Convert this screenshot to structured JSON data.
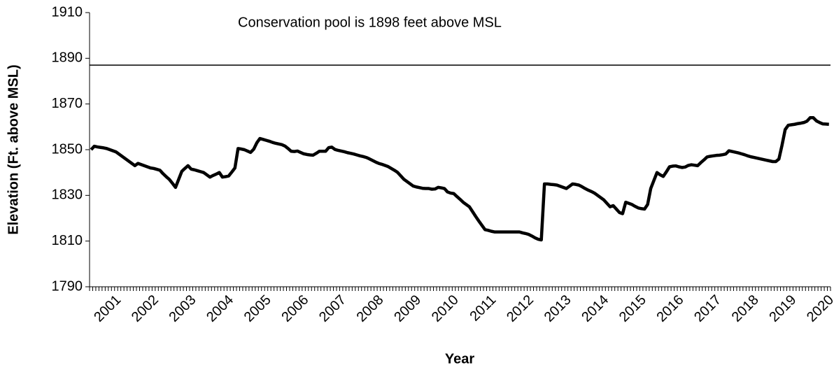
{
  "chart_data": {
    "type": "line",
    "annotation": "Conservation pool is 1898 feet above MSL",
    "xlabel": "Year",
    "ylabel": "Elevation (Ft. above MSL)",
    "reference_line": 1887,
    "color": "#000000",
    "categories": [
      null,
      null,
      null,
      null,
      null,
      null,
      null,
      null,
      "2001",
      null,
      null,
      null,
      null,
      null,
      null,
      null,
      null,
      null,
      null,
      null,
      "2002",
      null,
      null,
      null,
      null,
      null,
      null,
      null,
      null,
      null,
      null,
      null,
      "2003",
      null,
      null,
      null,
      null,
      null,
      null,
      null,
      null,
      null,
      null,
      null,
      "2004",
      null,
      null,
      null,
      null,
      null,
      null,
      null,
      null,
      null,
      null,
      null,
      "2005",
      null,
      null,
      null,
      null,
      null,
      null,
      null,
      null,
      null,
      null,
      null,
      "2006",
      null,
      null,
      null,
      null,
      null,
      null,
      null,
      null,
      null,
      null,
      null,
      "2007",
      null,
      null,
      null,
      null,
      null,
      null,
      null,
      null,
      null,
      null,
      null,
      "2008",
      null,
      null,
      null,
      null,
      null,
      null,
      null,
      null,
      null,
      null,
      null,
      "2009",
      null,
      null,
      null,
      null,
      null,
      null,
      null,
      null,
      null,
      null,
      null,
      "2010",
      null,
      null,
      null,
      null,
      null,
      null,
      null,
      null,
      null,
      null,
      null,
      "2011",
      null,
      null,
      null,
      null,
      null,
      null,
      null,
      null,
      null,
      null,
      null,
      "2012",
      null,
      null,
      null,
      null,
      null,
      null,
      null,
      null,
      null,
      null,
      null,
      "2013",
      null,
      null,
      null,
      null,
      null,
      null,
      null,
      null,
      null,
      null,
      null,
      "2014",
      null,
      null,
      null,
      null,
      null,
      null,
      null,
      null,
      null,
      null,
      null,
      "2015",
      null,
      null,
      null,
      null,
      null,
      null,
      null,
      null,
      null,
      null,
      null,
      "2016",
      null,
      null,
      null,
      null,
      null,
      null,
      null,
      null,
      null,
      null,
      null,
      "2017",
      null,
      null,
      null,
      null,
      null,
      null,
      null,
      null,
      null,
      null,
      null,
      "2018",
      null,
      null,
      null,
      null,
      null,
      null,
      null,
      null,
      null,
      null,
      null,
      "2019",
      null,
      null,
      null,
      null,
      null,
      null,
      null,
      null,
      null,
      null,
      null,
      "2020"
    ],
    "values": [
      1850,
      1851.5,
      1851.2,
      1851,
      1850.8,
      1850.5,
      1850,
      1849.5,
      1849,
      1848,
      1847,
      1846,
      1845,
      1844,
      1843,
      1844,
      1843.5,
      1843,
      1842.5,
      1842,
      1841.8,
      1841.4,
      1841,
      1839.5,
      1838.2,
      1837,
      1835.3,
      1833.5,
      1837,
      1840.5,
      1841.8,
      1843,
      1841.5,
      1841.2,
      1840.8,
      1840.4,
      1840,
      1839,
      1838,
      1838.7,
      1839.3,
      1840,
      1838,
      1838.2,
      1838.5,
      1840.2,
      1842,
      1850.5,
      1850.3,
      1850,
      1849.4,
      1848.8,
      1850.2,
      1853,
      1854.9,
      1854.5,
      1854.1,
      1853.7,
      1853.2,
      1852.8,
      1852.5,
      1852.2,
      1851.6,
      1850.5,
      1849.3,
      1849.2,
      1849.4,
      1848.8,
      1848.2,
      1847.9,
      1847.7,
      1847.6,
      1848.4,
      1849.3,
      1849.3,
      1849.3,
      1850.9,
      1851.1,
      1850.1,
      1849.7,
      1849.4,
      1849.1,
      1848.7,
      1848.4,
      1848.1,
      1847.7,
      1847.3,
      1847,
      1846.6,
      1846,
      1845.3,
      1844.6,
      1844,
      1843.6,
      1843.1,
      1842.6,
      1841.8,
      1841,
      1840.1,
      1838.6,
      1837.1,
      1836.1,
      1835.1,
      1834.1,
      1833.7,
      1833.4,
      1833.1,
      1833,
      1833,
      1832.7,
      1832.8,
      1833.5,
      1833.3,
      1833,
      1831.5,
      1831,
      1830.8,
      1829.5,
      1828.3,
      1827,
      1826,
      1825,
      1822.9,
      1820.8,
      1818.8,
      1816.9,
      1815,
      1814.7,
      1814.3,
      1814,
      1814,
      1814,
      1814,
      1814,
      1814,
      1814,
      1814,
      1814,
      1813.6,
      1813.3,
      1812.9,
      1812.2,
      1811.4,
      1810.8,
      1810.5,
      1835,
      1835,
      1834.8,
      1834.7,
      1834.5,
      1834,
      1833.5,
      1833,
      1834,
      1835,
      1834.8,
      1834.5,
      1833.8,
      1833,
      1832.3,
      1831.7,
      1831,
      1830,
      1829,
      1828,
      1826.5,
      1825,
      1825.5,
      1824,
      1822.5,
      1822,
      1827,
      1826.5,
      1826,
      1825.2,
      1824.5,
      1824.2,
      1824,
      1826,
      1833,
      1836.5,
      1840,
      1839,
      1838.3,
      1840.3,
      1842.5,
      1842.8,
      1842.9,
      1842.5,
      1842.2,
      1842.4,
      1843.1,
      1843.4,
      1843.2,
      1843,
      1844.3,
      1845.5,
      1846.8,
      1847.1,
      1847.3,
      1847.5,
      1847.6,
      1847.8,
      1848.1,
      1849.5,
      1849.2,
      1848.9,
      1848.6,
      1848.2,
      1847.8,
      1847.3,
      1846.9,
      1846.6,
      1846.3,
      1846,
      1845.7,
      1845.4,
      1845.1,
      1844.8,
      1844.8,
      1845.9,
      1852,
      1858.8,
      1860.7,
      1860.9,
      1861.1,
      1861.4,
      1861.6,
      1861.9,
      1862.5,
      1864,
      1864,
      1862.6,
      1861.9,
      1861.3,
      1861.2,
      1861.1
    ],
    "ylim": [
      1790,
      1910
    ],
    "yticks": [
      1790,
      1810,
      1830,
      1850,
      1870,
      1890,
      1910
    ]
  }
}
